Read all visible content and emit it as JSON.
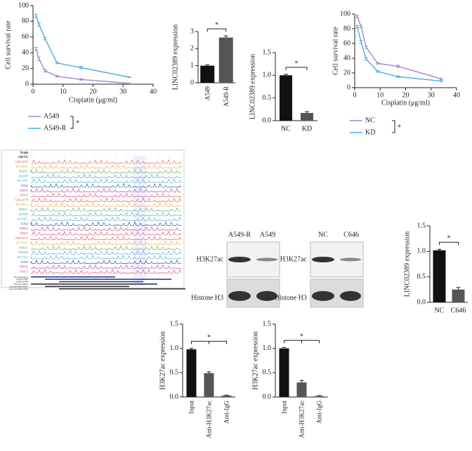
{
  "chart_data": [
    {
      "type": "line",
      "y_label": "Cell survival rate",
      "x_label": "Cisplatin (μg/ml)",
      "xlim": [
        0,
        40
      ],
      "xticks": [
        0,
        10,
        20,
        30,
        40
      ],
      "ylim": [
        0,
        100
      ],
      "yticks": [
        0,
        20,
        40,
        60,
        80,
        100
      ],
      "x": [
        1,
        2,
        4,
        8,
        16,
        32
      ],
      "series": [
        {
          "name": "A549",
          "color": "#9a88cf",
          "values": [
            45,
            32,
            17,
            10,
            6,
            1
          ],
          "errors": [
            2,
            2,
            1.5,
            1,
            1,
            0.5
          ]
        },
        {
          "name": "A549-R",
          "color": "#47aee6",
          "values": [
            87,
            76,
            58,
            27,
            21,
            9
          ],
          "errors": [
            2,
            2,
            1.5,
            1,
            1.5,
            0.5
          ]
        }
      ],
      "annotation": "*"
    },
    {
      "type": "bar",
      "y_label": "LINC02389 expression",
      "categories": [
        "A549",
        "A549-R"
      ],
      "values": [
        1.0,
        2.65
      ],
      "errors": [
        0.05,
        0.1
      ],
      "colors": [
        "#111111",
        "#555555"
      ],
      "ylim": [
        0,
        3
      ],
      "yticks": [
        0,
        1,
        2,
        3
      ],
      "annotation": "*"
    },
    {
      "type": "bar",
      "y_label": "LINC02389 expression",
      "categories": [
        "NC",
        "KD"
      ],
      "values": [
        1.0,
        0.17
      ],
      "errors": [
        0.02,
        0.03
      ],
      "colors": [
        "#111111",
        "#555555"
      ],
      "ylim": [
        0,
        1.5
      ],
      "yticks": [
        {
          "value": 0,
          "label": "0.0"
        },
        0.5,
        {
          "value": 1,
          "label": "1.0"
        },
        1.5
      ],
      "annotation": "*"
    },
    {
      "type": "line",
      "y_label": "Cell survival rate",
      "x_label": "Cisplatin (μg/ml)",
      "xlim": [
        0,
        40
      ],
      "xticks": [
        0,
        10,
        20,
        30,
        40
      ],
      "ylim": [
        0,
        100
      ],
      "yticks": [
        0,
        20,
        40,
        60,
        80,
        100
      ],
      "x": [
        1,
        2.5,
        4.5,
        9,
        17,
        34
      ],
      "series": [
        {
          "name": "NC",
          "color": "#9a88cf",
          "values": [
            97,
            83,
            55,
            33,
            29,
            12
          ],
          "errors": [
            1.5,
            1.5,
            1.5,
            1,
            1.5,
            1
          ]
        },
        {
          "name": "KD",
          "color": "#47aee6",
          "values": [
            83,
            62,
            39,
            22,
            15,
            9
          ],
          "errors": [
            1.5,
            2,
            1.5,
            1,
            1,
            0.5
          ]
        }
      ],
      "annotation": "*"
    },
    {
      "type": "bar",
      "y_label": "LINC02389 expression",
      "categories": [
        "NC",
        "C646"
      ],
      "values": [
        1.02,
        0.25
      ],
      "errors": [
        0.02,
        0.04
      ],
      "colors": [
        "#111111",
        "#555555"
      ],
      "ylim": [
        0,
        1.5
      ],
      "yticks": [
        {
          "value": 0,
          "label": "0.0"
        },
        0.5,
        {
          "value": 1,
          "label": "1.0"
        },
        1.5
      ],
      "annotation": "*"
    },
    {
      "type": "bar",
      "y_label": "H3K27ac expression",
      "categories": [
        "Input",
        "Anti-H3K27ac",
        "Anti-IgG"
      ],
      "values": [
        0.98,
        0.49,
        0.03
      ],
      "errors": [
        0.02,
        0.03,
        0.01
      ],
      "colors": [
        "#111111",
        "#555555",
        "#555555"
      ],
      "ylim": [
        0,
        1.5
      ],
      "yticks": [
        {
          "value": 0,
          "label": "0.0"
        },
        0.5,
        {
          "value": 1,
          "label": "1.0"
        },
        1.5
      ],
      "annotation": "*"
    },
    {
      "type": "bar",
      "y_label": "H3K27ac expression",
      "categories": [
        "Input",
        "Anti-H3K27ac",
        "Anti-IgG"
      ],
      "values": [
        1.0,
        0.3,
        0.02
      ],
      "errors": [
        0.02,
        0.04,
        0.01
      ],
      "colors": [
        "#111111",
        "#555555",
        "#555555"
      ],
      "ylim": [
        0,
        1.5
      ],
      "yticks": [
        {
          "value": 0,
          "label": "0.0"
        },
        0.5,
        {
          "value": 1,
          "label": "1.0"
        },
        1.5
      ],
      "annotation": "*"
    }
  ],
  "genome_browser": {
    "header": [
      "Scale",
      "chr12:"
    ],
    "tracks": [
      {
        "name": "GM12878",
        "color": "#e0503c"
      },
      {
        "name": "H1-hESC",
        "color": "#e8a23a"
      },
      {
        "name": "HMEC",
        "color": "#3fae5a"
      },
      {
        "name": "HSMM",
        "color": "#3fa3c8"
      },
      {
        "name": "HUVEC",
        "color": "#3fa3c8"
      },
      {
        "name": "K562",
        "color": "#223a8a"
      },
      {
        "name": "NHEK",
        "color": "#b03a9a"
      },
      {
        "name": "NHLF",
        "color": "#d04060"
      },
      {
        "name": "GM12878",
        "color": "#e0503c"
      },
      {
        "name": "H1-hESC",
        "color": "#e8a23a"
      },
      {
        "name": "HMEC",
        "color": "#3fae5a"
      },
      {
        "name": "HSMM",
        "color": "#3fa3c8"
      },
      {
        "name": "HUVEC",
        "color": "#3fa3c8"
      },
      {
        "name": "K562",
        "color": "#223a8a"
      },
      {
        "name": "NHEK",
        "color": "#b03a9a"
      },
      {
        "name": "NHLF",
        "color": "#d04060"
      },
      {
        "name": "GM12878",
        "color": "#e0503c"
      },
      {
        "name": "H1-hESC",
        "color": "#e8a23a"
      },
      {
        "name": "HMEC",
        "color": "#3fae5a"
      },
      {
        "name": "HSMM",
        "color": "#3fa3c8"
      },
      {
        "name": "HUVEC",
        "color": "#3fa3c8"
      },
      {
        "name": "K562",
        "color": "#223a8a"
      },
      {
        "name": "NHEK",
        "color": "#b03a9a"
      },
      {
        "name": "NHLF",
        "color": "#d04060"
      }
    ],
    "footer": [
      "All haplotypes",
      "LINC02389",
      "LINC02389",
      "Global Alleles",
      "Layered H3K4Me1",
      "Layered H3K4Me3"
    ]
  },
  "blots": [
    {
      "lanes": [
        "A549-R",
        "A549"
      ],
      "rows": [
        "H3K27ac",
        "Histone H3"
      ]
    },
    {
      "lanes": [
        "NC",
        "C646"
      ],
      "rows": [
        "H3K27ac",
        "Histone H3"
      ]
    }
  ]
}
